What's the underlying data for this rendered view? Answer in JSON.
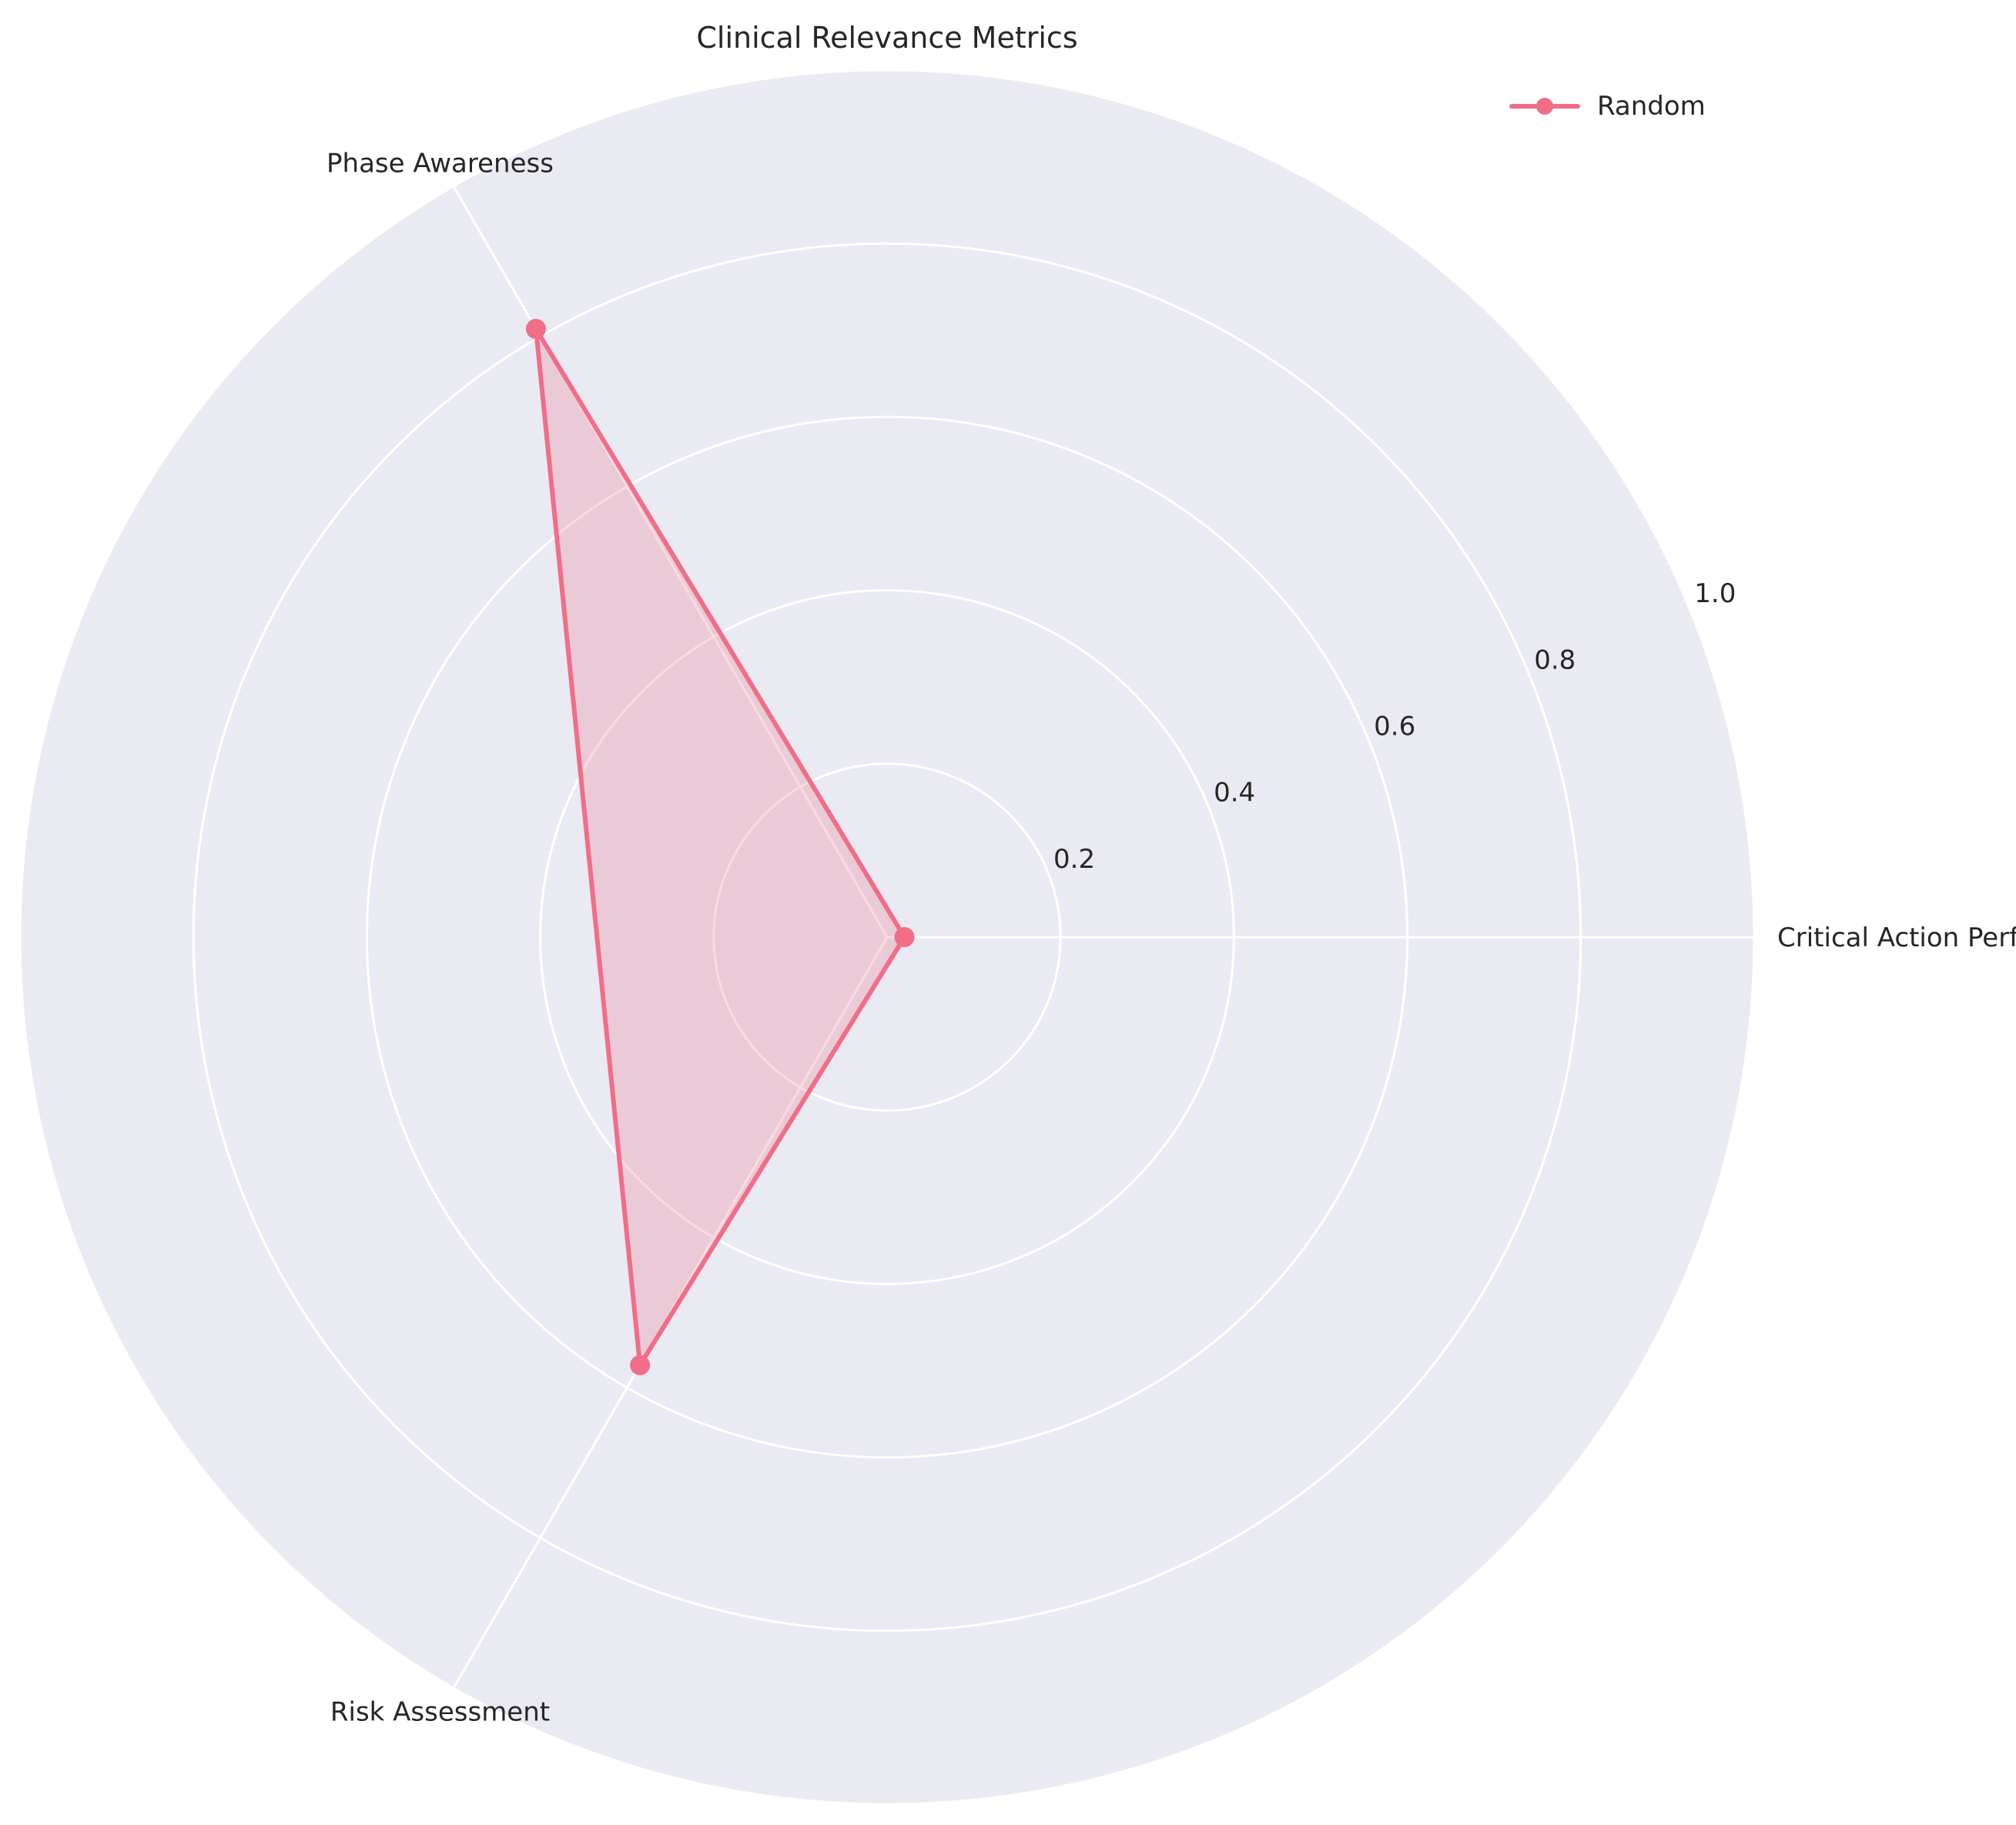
{
  "chart_data": {
    "type": "radar",
    "title": "Clinical Relevance Metrics",
    "categories": [
      "Critical Action Performance",
      "Phase Awareness",
      "Risk Assessment"
    ],
    "series": [
      {
        "name": "Random",
        "values": [
          0.02,
          0.81,
          0.57
        ]
      }
    ],
    "rlim": [
      0,
      1.0
    ],
    "rticks": [
      "0.2",
      "0.4",
      "0.6",
      "0.8",
      "1.0"
    ],
    "grid": true,
    "legend": "top-right",
    "colors": {
      "series": "#f16d88",
      "background": "#eaeaf2",
      "grid": "#ffffff"
    }
  }
}
